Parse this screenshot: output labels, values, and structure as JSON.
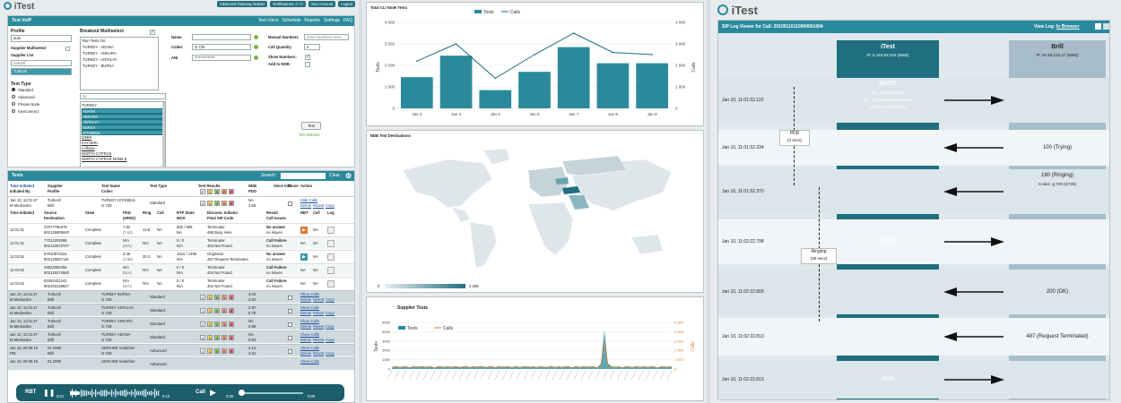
{
  "left": {
    "logo": "iTest",
    "top_links": [
      "Advanced Gateway Builder",
      "Notifications: 0 / 0",
      "Your Account",
      "Logout"
    ],
    "nav": [
      "Test Voice",
      "Schedule",
      "Reports",
      "Settings",
      "FAQ"
    ],
    "voip_panel_title": "Test VoIP",
    "profile_label": "Profile",
    "profile_value": "auto",
    "supplier_multiselect": "Supplier Multiselect",
    "supplier_list": "Supplier List",
    "supplier_search": "turkcell",
    "supplier_selected": "Turkcell",
    "test_type_label": "Test Type",
    "test_types": [
      "Standard",
      "Advanced",
      "Private Node",
      "Interconnect"
    ],
    "breakout_label": "Breakout Multiselect",
    "breakouts": [
      "Run Tests On:",
      "TURKEY - ADANA",
      "TURKEY - ANKARA",
      "TURKEY - ANTALYA",
      "TURKEY - BURSA"
    ],
    "search2": "tur",
    "countries": [
      "TURKEY",
      "ADANA",
      "ANKARA",
      "ANTALYA",
      "BURSA",
      "ISTANBUL",
      "IZMIR",
      "KAYSERI",
      "Lefkosa",
      "NORTH CYPRUS",
      "NORTH CYPRUS MOBILE"
    ],
    "name_label": "Name",
    "codec_label": "Codec",
    "codec_value": "G.729",
    "ani_label": "ANI",
    "ani_value": "**************",
    "manual_numbers": "Manual Numbers",
    "manual_placeholder": "Enter Numbers Here",
    "call_quantity": "Call Quantity",
    "call_quantity_value": "4",
    "show_numbers": "Show Numbers:",
    "add_to_ndb": "Add to NDB:",
    "test_btn": "Test",
    "test_initiated": "Test Initiated",
    "tests_title": "Tests",
    "search_label": "Search:",
    "clear": "Clear",
    "cols1": [
      "Time Initiated",
      "Supplier",
      "Test Name",
      "Test Type",
      "Test Results",
      "NDB",
      "Voice Info",
      "Share",
      "Action"
    ],
    "cols1b": [
      "Initiated By",
      "Profile",
      "Codec",
      "",
      "",
      "PDD",
      "",
      "",
      ""
    ],
    "cols2": [
      "Time Initiated",
      "Source",
      "State",
      "PDD",
      "Ring",
      "Call",
      "RTP State",
      "Disconn. Initiator",
      "Result",
      "RBT",
      "Cell",
      "Log"
    ],
    "cols2b": [
      "",
      "Destination",
      "",
      "(ePDD)",
      "",
      "",
      "MOS",
      "Final SIP Code",
      "Call Issues",
      "",
      "",
      ""
    ],
    "group_main": {
      "time": "Jan 10, 11:01:47",
      "by": "M Medvedev",
      "supplier": "Turkcell",
      "profile": "Brill",
      "name": "TURKEY ISTANBUL",
      "codec": "G.729",
      "type": "Standard",
      "badges": [
        "4",
        "1",
        "3",
        "0",
        "0"
      ],
      "ndb": "NA",
      "pdd": "4.58",
      "links": [
        "Hide Calls",
        "Delete",
        "Retest",
        "Copy"
      ]
    },
    "calls": [
      {
        "time": "11:01:31",
        "src": "3767779e678",
        "dst": "902126809640",
        "state": "Complete",
        "pdd": "7.82",
        "epdd": "(7.52)",
        "ring": "13.8",
        "call": "NA",
        "rtp": "582 / 565",
        "mos": "NA",
        "init": "Terminator",
        "code": "486 Busy Here",
        "res": "No answer",
        "iss": "no issues",
        "rbt": "NA",
        "cell": "NA"
      },
      {
        "time": "11:01:31",
        "src": "77012203095",
        "dst": "902122573747",
        "state": "Complete",
        "pdd": "N/A",
        "epdd": "(N/A)",
        "ring": "N/A",
        "call": "NA",
        "rtp": "0 / 0",
        "mos": "N/A",
        "init": "Terminator",
        "code": "404 Not Found",
        "res": "Call Failure",
        "iss": "no issues",
        "rbt": "NA",
        "cell": "NA"
      },
      {
        "time": "11:01:52",
        "src": "87910973224",
        "dst": "902126837115",
        "state": "Complete",
        "pdd": "3.46",
        "epdd": "(1.88)",
        "ring": "30.2",
        "call": "NA",
        "rtp": "1510 / 1486",
        "mos": "N/A",
        "init": "Originator",
        "code": "487 Request Terminated",
        "res": "No answer",
        "iss": "no issues",
        "rbt": "NA",
        "cell": "NA"
      },
      {
        "time": "11:01:52",
        "src": "33623392456",
        "dst": "902126274560",
        "state": "Complete",
        "pdd": "N/A",
        "epdd": "(N/A)",
        "ring": "N/A",
        "call": "NA",
        "rtp": "0 / 0",
        "mos": "N/A",
        "init": "Terminator",
        "code": "404 Not Found",
        "res": "Call Failure",
        "iss": "no issues",
        "rbt": "NA",
        "cell": "NA"
      },
      {
        "time": "11:01:52",
        "src": "63392421341",
        "dst": "902163138627",
        "state": "Complete",
        "pdd": "N/A",
        "epdd": "(N/A)",
        "ring": "N/A",
        "call": "NA",
        "rtp": "0 / 0",
        "mos": "N/A",
        "init": "Terminator",
        "code": "404 Not Found",
        "res": "Call Failure",
        "iss": "no issues",
        "rbt": "NA",
        "cell": "NA"
      }
    ],
    "groups": [
      {
        "time": "Jan 10, 11:01:47",
        "by": "M Medvedev",
        "supplier": "Turkcell",
        "profile": "Brill",
        "name": "TURKEY BURSA",
        "codec": "G.729",
        "type": "Standard",
        "badges": [
          "2",
          "1",
          "0",
          "1",
          "0"
        ],
        "v1": "3.03",
        "v2": "2.82"
      },
      {
        "time": "Jan 10, 11:01:47",
        "by": "M Medvedev",
        "supplier": "Turkcell",
        "profile": "Brill",
        "name": "TURKEY ANTALYA",
        "codec": "G.729",
        "type": "Standard",
        "badges": [
          "1",
          "1",
          "0",
          "0",
          "0"
        ],
        "v1": "2.97",
        "v2": "0.70"
      },
      {
        "time": "Jan 10, 11:01:47",
        "by": "M Medvedev",
        "supplier": "Turkcell",
        "profile": "Brill",
        "name": "TURKEY ANKARA",
        "codec": "G.729",
        "type": "Standard",
        "badges": [
          "1",
          "1",
          "0",
          "3",
          "0"
        ],
        "v1": "NA",
        "v2": "0.89"
      },
      {
        "time": "Jan 10, 11:01:47",
        "by": "M Medvedev",
        "supplier": "Turkcell",
        "profile": "Brill",
        "name": "TURKEY ADANA",
        "codec": "G.729",
        "type": "Standard",
        "badges": [
          "4",
          "1",
          "3",
          "0",
          "0"
        ],
        "v1": "NA",
        "v2": "0.93"
      },
      {
        "time": "Jan 10, 09:35:19",
        "by": "PM",
        "supplier": "01.2080",
        "profile": "Brill",
        "name": "UKRAINE Vodafone",
        "codec": "G.729",
        "type": "Advanced",
        "badges": [
          "1",
          "1",
          "0",
          "0",
          "0"
        ],
        "v1": "2.12",
        "v2": "3.91"
      },
      {
        "time": "Jan 10, 09:35:19",
        "by": "",
        "supplier": "01.2080",
        "profile": "",
        "name": "UKRAINE Vodafone",
        "codec": "",
        "type": "Advanced",
        "badges": [],
        "v1": "",
        "v2": ""
      }
    ],
    "row_links": [
      "Show Calls",
      "Delete",
      "Retest",
      "Copy"
    ],
    "player": {
      "rbt": "RBT",
      "t1": "0:01",
      "t2": "0:10",
      "call": "Call",
      "t3": "0:00",
      "t4": "0:00"
    }
  },
  "middle": {
    "chart1": {
      "title": "Total CLI Node Tests",
      "legend_tests": "Tests",
      "legend_calls": "Calls",
      "ylabel": "Tests",
      "y2label": "Calls"
    },
    "map": {
      "title": "NDB Test Destinations",
      "min": "0",
      "max": "2 259"
    },
    "chart3": {
      "title": "Supplier Tests",
      "legend_tests": "Tests",
      "legend_calls": "Calls",
      "ylabel": "Tests",
      "y2label": "Calls"
    }
  },
  "right": {
    "logo": "iTest",
    "title": "SIP Log Viewer for Call: 20100110110000001004",
    "view_log": "View Log:",
    "in_browser": "In Browser",
    "itest": "iTest",
    "itest_ip": "IP: 5.153.94.244 (5060)",
    "brill": "Brill",
    "brill_ip": "IP: 91.93.210.37 (5060)",
    "rows": [
      {
        "time": "Jan 10, 11:01:52.110",
        "dir": "right",
        "label": "INVITE",
        "sub": [
          "Src: 87910973224",
          "Dst: 127209902126837115",
          "Codec: g.729 (G729)"
        ]
      },
      {
        "time": "Jan 10, 11:01:52.334",
        "dir": "left",
        "label": "100 (Trying)",
        "sub": []
      },
      {
        "time": "Jan 10, 11:01:52.370",
        "dir": "left",
        "label": "180 (Ringing)",
        "sub": [
          "Codec: g.729 (G729)"
        ]
      },
      {
        "time": "Jan 10, 11:02:22.798",
        "dir": "right",
        "label": "CANCEL",
        "sub": []
      },
      {
        "time": "Jan 10, 11:02:22.809",
        "dir": "left",
        "label": "200 (OK)",
        "sub": []
      },
      {
        "time": "Jan 10, 11:02:22.813",
        "dir": "left",
        "label": "487 (Request Terminated)",
        "sub": []
      },
      {
        "time": "Jan 10, 11:02:22.813",
        "dir": "right",
        "label": "ACK",
        "sub": []
      }
    ],
    "pdd": "PDD",
    "pdd_val": "(0 secs)",
    "ringing": "Ringing",
    "ringing_val": "(30 secs)"
  },
  "chart_data": [
    {
      "type": "bar",
      "title": "Total CLI Node Tests",
      "categories": [
        "Jan 3",
        "Jan 4",
        "Jan 5",
        "Jan 6",
        "Jan 7",
        "Jan 8",
        "Jan 9"
      ],
      "series": [
        {
          "name": "Tests",
          "values": [
            1450,
            2450,
            850,
            1700,
            2850,
            2100,
            2100
          ]
        },
        {
          "name": "Calls",
          "values": [
            2200,
            3000,
            1400,
            2500,
            3500,
            2600,
            2500
          ]
        }
      ],
      "ylim": [
        0,
        4000
      ],
      "y2lim": [
        0,
        4000
      ],
      "ylabel": "Tests",
      "y2label": "Calls",
      "yticks": [
        0,
        1000,
        2000,
        3000,
        4000
      ],
      "y2ticks": [
        0,
        1000,
        2000,
        3000,
        4000
      ]
    },
    {
      "type": "line",
      "title": "Supplier Tests",
      "series": [
        {
          "name": "Tests",
          "peak": 4.2
        },
        {
          "name": "Calls",
          "peak": 2.8
        }
      ],
      "ylim": [
        0,
        5000
      ],
      "y2lim": [
        0,
        5000
      ],
      "yticks": [
        0,
        1000,
        2000,
        3000,
        4000,
        5000
      ],
      "y2ticks": [
        "0",
        "1 000",
        "2 000",
        "3 000",
        "4 000",
        "5 000"
      ],
      "ylabel": "Tests",
      "y2label": "Calls"
    }
  ]
}
